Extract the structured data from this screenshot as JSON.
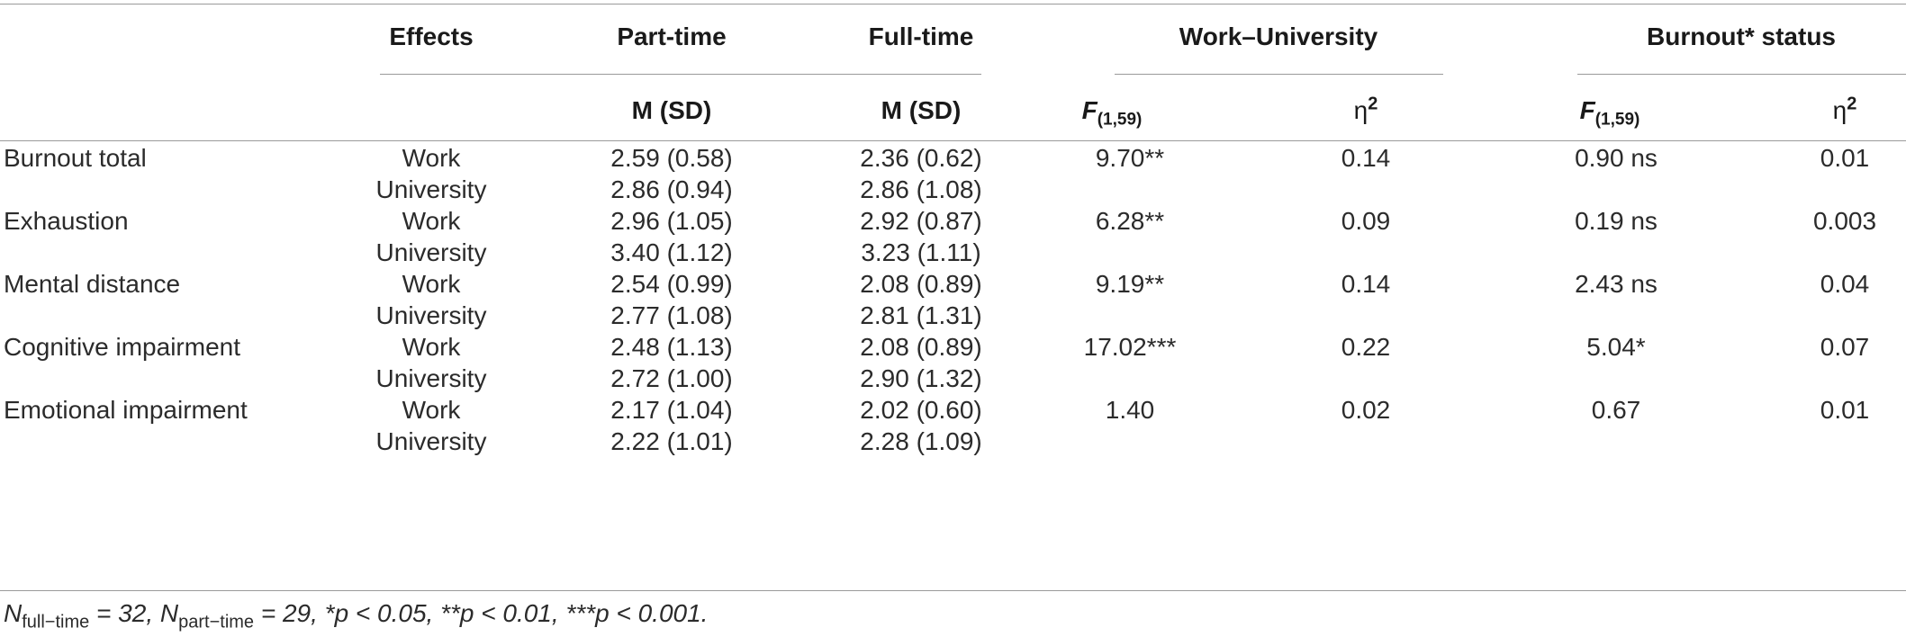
{
  "header": {
    "effects": "Effects",
    "part_time": "Part-time",
    "full_time": "Full-time",
    "work_university": "Work–University",
    "burnout_status": "Burnout* status",
    "msd_part": "M (SD)",
    "msd_full": "M (SD)",
    "F_symbol": "F",
    "F_subscript": "(1,59)",
    "eta_symbol": "η",
    "eta_sup": "2"
  },
  "rows": [
    {
      "label": "Burnout total",
      "work_part": "2.59 (0.58)",
      "work_full": "2.36 (0.62)",
      "uni_part": "2.86 (0.94)",
      "uni_full": "2.86 (1.08)",
      "wu_F": "9.70**",
      "wu_eta": "0.14",
      "bs_F": "0.90 ns",
      "bs_eta": "0.01"
    },
    {
      "label": "Exhaustion",
      "work_part": "2.96 (1.05)",
      "work_full": "2.92 (0.87)",
      "uni_part": "3.40 (1.12)",
      "uni_full": "3.23 (1.11)",
      "wu_F": "6.28**",
      "wu_eta": "0.09",
      "bs_F": "0.19 ns",
      "bs_eta": "0.003"
    },
    {
      "label": "Mental distance",
      "work_part": "2.54 (0.99)",
      "work_full": "2.08 (0.89)",
      "uni_part": "2.77 (1.08)",
      "uni_full": "2.81 (1.31)",
      "wu_F": "9.19**",
      "wu_eta": "0.14",
      "bs_F": "2.43 ns",
      "bs_eta": "0.04"
    },
    {
      "label": "Cognitive impairment",
      "work_part": "2.48 (1.13)",
      "work_full": "2.08 (0.89)",
      "uni_part": "2.72 (1.00)",
      "uni_full": "2.90 (1.32)",
      "wu_F": "17.02***",
      "wu_eta": "0.22",
      "bs_F": "5.04*",
      "bs_eta": "0.07"
    },
    {
      "label": "Emotional impairment",
      "work_part": "2.17 (1.04)",
      "work_full": "2.02 (0.60)",
      "uni_part": "2.22 (1.01)",
      "uni_full": "2.28 (1.09)",
      "wu_F": "1.40",
      "wu_eta": "0.02",
      "bs_F": "0.67",
      "bs_eta": "0.01"
    }
  ],
  "effect_labels": {
    "work": "Work",
    "university": "University"
  },
  "note": {
    "n": "N",
    "full_sub": "full−time",
    "full_val": " = 32, ",
    "part_sub": "part−time",
    "part_val": " = 29, *p < 0.05, **p < 0.01, ***p < 0.001."
  }
}
